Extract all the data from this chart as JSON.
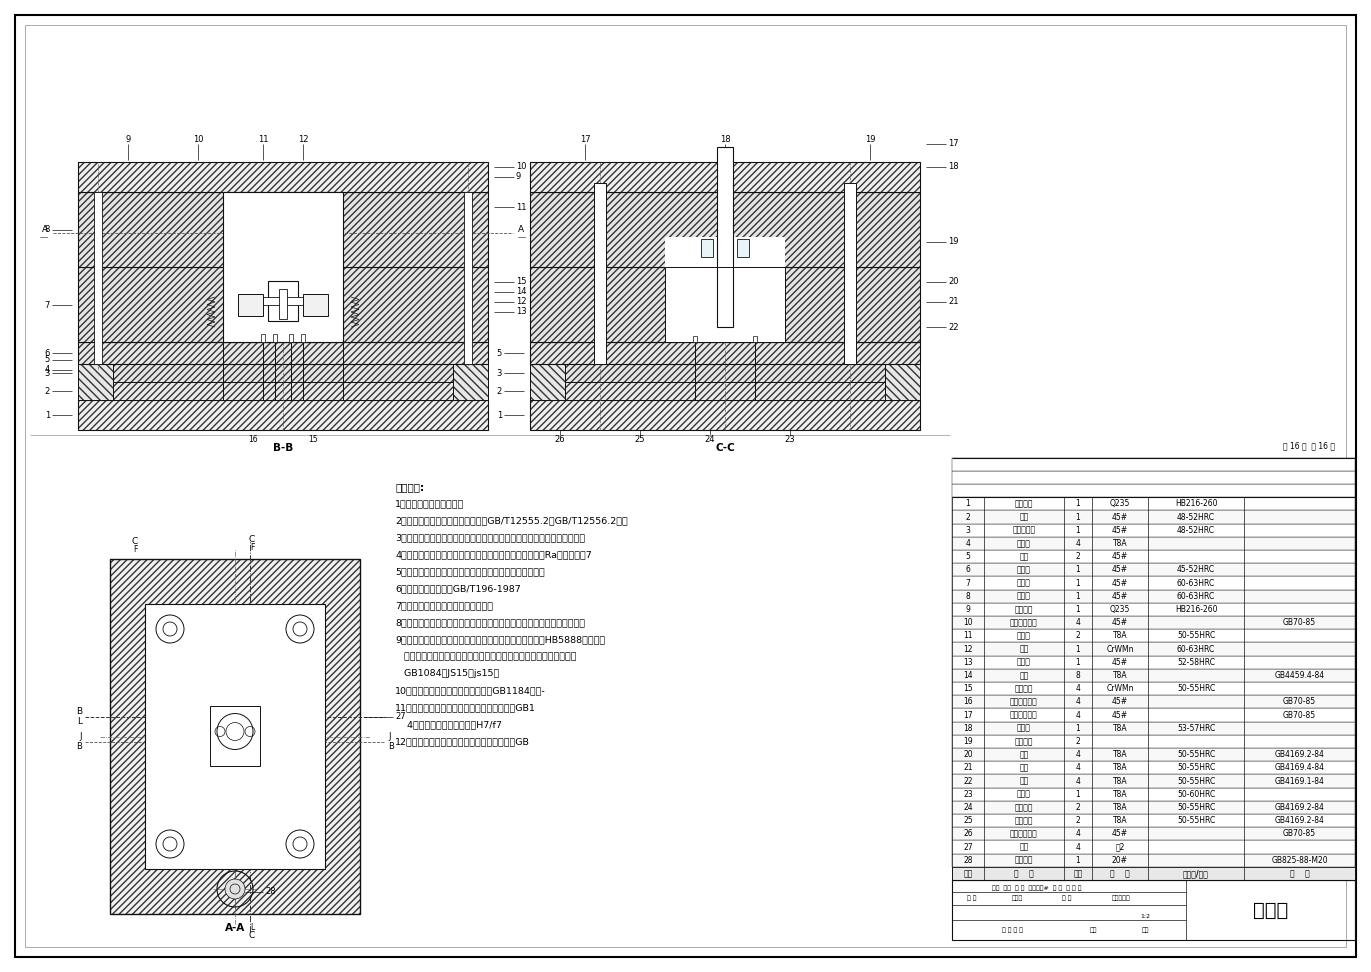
{
  "title": "装配图",
  "bg_color": "#ffffff",
  "table_header": [
    "序号",
    "名    称",
    "数量",
    "材    料",
    "热处理/备注",
    "代    码"
  ],
  "bom_rows": [
    [
      "28",
      "吊环螺钉",
      "1",
      "20#",
      "",
      "GB825-88-M20"
    ],
    [
      "27",
      "水嘴",
      "4",
      "铜2",
      "",
      ""
    ],
    [
      "26",
      "动模固定螺钉",
      "4",
      "45#",
      "",
      "GB70-85"
    ],
    [
      "25",
      "推板导套",
      "2",
      "T8A",
      "50-55HRC",
      "GB4169.2-84"
    ],
    [
      "24",
      "推板导柱",
      "2",
      "T8A",
      "50-55HRC",
      "GB4169.2-84"
    ],
    [
      "23",
      "拉料杆",
      "1",
      "T8A",
      "50-60HRC",
      ""
    ],
    [
      "22",
      "推杆",
      "4",
      "T8A",
      "50-55HRC",
      "GB4169.1-84"
    ],
    [
      "21",
      "导柱",
      "4",
      "T8A",
      "50-55HRC",
      "GB4169.4-84"
    ],
    [
      "20",
      "导套",
      "4",
      "T8A",
      "50-55HRC",
      "GB4169.2-84"
    ],
    [
      "19",
      "冷却水道",
      "2",
      "",
      "",
      ""
    ],
    [
      "18",
      "浇口套",
      "1",
      "T8A",
      "53-57HRC",
      ""
    ],
    [
      "17",
      "定尺固定螺钉",
      "4",
      "45#",
      "",
      "GB70-85"
    ],
    [
      "16",
      "推板固定螺钉",
      "4",
      "45#",
      "",
      "GB70-85"
    ],
    [
      "15",
      "定距螺钉",
      "4",
      "CrWMn",
      "50-55HRC",
      ""
    ],
    [
      "14",
      "弹簧",
      "8",
      "T8A",
      "",
      "GB4459.4-84"
    ],
    [
      "13",
      "侧滑块",
      "1",
      "45#",
      "52-58HRC",
      ""
    ],
    [
      "12",
      "型芯",
      "1",
      "CrWMn",
      "60-63HRC",
      ""
    ],
    [
      "11",
      "斜导柱",
      "2",
      "T8A",
      "50-55HRC",
      ""
    ],
    [
      "10",
      "定模固定螺钉",
      "4",
      "45#",
      "",
      "GB70-85"
    ],
    [
      "9",
      "定模座板",
      "1",
      "Q235",
      "HB216-260",
      ""
    ],
    [
      "8",
      "定模板",
      "1",
      "45#",
      "60-63HRC",
      ""
    ],
    [
      "7",
      "动模板",
      "1",
      "45#",
      "60-63HRC",
      ""
    ],
    [
      "6",
      "支撑板",
      "1",
      "45#",
      "45-52HRC",
      ""
    ],
    [
      "5",
      "垫块",
      "2",
      "45#",
      "",
      ""
    ],
    [
      "4",
      "复位杆",
      "4",
      "T8A",
      "",
      ""
    ],
    [
      "3",
      "推杆固定板",
      "1",
      "45#",
      "48-52HRC",
      ""
    ],
    [
      "2",
      "推板",
      "1",
      "45#",
      "48-52HRC",
      ""
    ],
    [
      "1",
      "动模座板",
      "1",
      "Q235",
      "HB216-260",
      ""
    ]
  ],
  "tech_lines": [
    "技术要求:",
    "1、板类零件的棱边须倒钝",
    "2、定模与动模安装平面的平行度按GB/T12555.2和GB/T12556.2规定",
    "3、模具所有活动部分应保证位置准确，动作可靠，不得有歪斜和卡滞现象",
    "4、流道转接处应光滑圆弧连接，浇注系统表面粗糙度参数Ra最大允许值7",
    "5、合模后分型面应紧密贴合，成型部件的配合应紧密贴合",
    "6、螺纹的基本尺寸按GB/T196-1987",
    "7、冷却系统应畅通，不应有泄漏现象",
    "8、模具、模架及其零件工作表面不允许有锈斑、裂纹、凹坑、毛刺等缺陷",
    "9、成型表面的汉字、数字、字母、符号的规格尺寸应符合HB5888的规定，",
    "   并排列整齐均匀，所注位置尺寸，图纸未注明公差时，其极限偏差按",
    "   GB1084的JS15（js15）",
    "10、各模板两承压面的平行度公差按GB1184附录-",
    "11、导柱，导套孔对模板平面的垂直度公差按GB1",
    "    4级，导柱与导套的配合按H7/f7",
    "12、导柱其配合部分的大径与小径的同轴度按GB"
  ]
}
